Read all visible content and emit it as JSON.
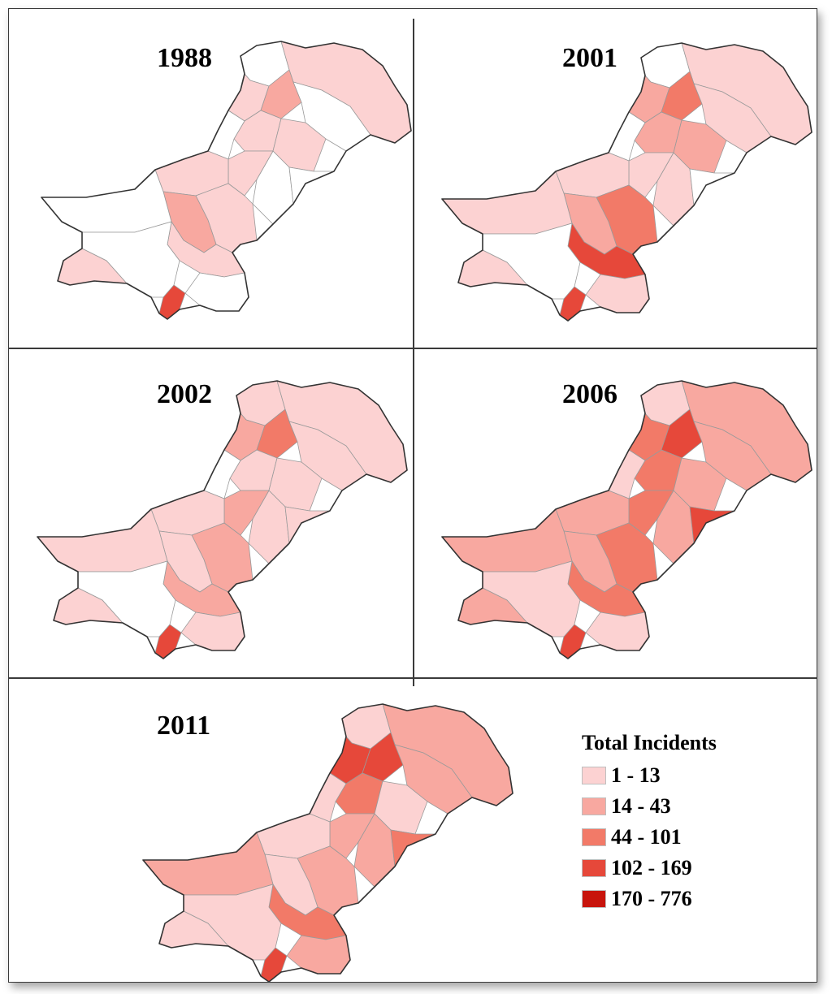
{
  "panels": [
    {
      "year": "1988",
      "shades": [
        0,
        1,
        1,
        2,
        0,
        1,
        0,
        4,
        1,
        0,
        1,
        0,
        1,
        1,
        2,
        0,
        1,
        0,
        0,
        1
      ]
    },
    {
      "year": "2001",
      "shades": [
        0,
        1,
        2,
        3,
        1,
        2,
        0,
        4,
        2,
        1,
        1,
        0,
        1,
        3,
        2,
        1,
        4,
        1,
        0,
        1
      ]
    },
    {
      "year": "2002",
      "shades": [
        1,
        1,
        2,
        3,
        1,
        1,
        0,
        4,
        1,
        1,
        2,
        1,
        1,
        2,
        1,
        1,
        2,
        1,
        0,
        1
      ]
    },
    {
      "year": "2006",
      "shades": [
        1,
        2,
        3,
        4,
        2,
        3,
        1,
        4,
        2,
        2,
        3,
        4,
        2,
        3,
        2,
        2,
        3,
        1,
        1,
        2
      ]
    },
    {
      "year": "2011",
      "shades": [
        1,
        2,
        4,
        4,
        2,
        3,
        1,
        4,
        1,
        2,
        2,
        3,
        1,
        2,
        1,
        2,
        3,
        2,
        1,
        1
      ]
    }
  ],
  "legend": {
    "title": "Total Incidents",
    "classes": [
      {
        "label": "1 - 13",
        "color": "#fcd2d2"
      },
      {
        "label": "14 - 43",
        "color": "#f8a8a0"
      },
      {
        "label": "44 - 101",
        "color": "#f27a68"
      },
      {
        "label": "102 - 169",
        "color": "#e6483a"
      },
      {
        "label": "170 - 776",
        "color": "#c8140c"
      }
    ]
  },
  "colors": {
    "no_data": "#ffffff",
    "border": "#333333",
    "district_line": "#9a9a9a"
  }
}
